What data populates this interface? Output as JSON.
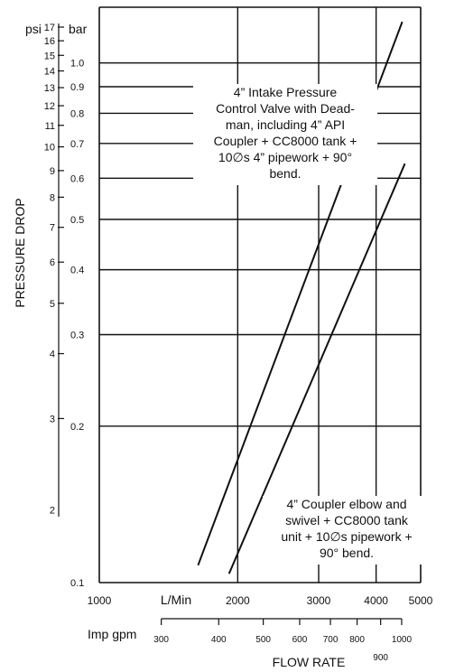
{
  "chart_data": {
    "type": "line",
    "xscale": "log",
    "yscale": "log",
    "xlabel": "FLOW RATE",
    "ylabel": "PRESSURE DROP",
    "x_unit": "L/Min",
    "x_unit_secondary": "Imp gpm",
    "y_unit_left": "psi",
    "y_unit_right": "bar",
    "xlim": [
      1000,
      5000
    ],
    "ylim": [
      0.1,
      1.28
    ],
    "grid": true,
    "x_ticks": [
      "1000",
      "2000",
      "3000",
      "4000",
      "5000"
    ],
    "x_tick_values": [
      1000,
      2000,
      3000,
      4000,
      5000
    ],
    "gpm_ticks": [
      "300",
      "400",
      "500",
      "600",
      "700",
      "800",
      "900",
      "1000"
    ],
    "gpm_tick_values": [
      300,
      400,
      500,
      600,
      700,
      800,
      900,
      1000
    ],
    "bar_ticks": [
      "1.0",
      "0.9",
      "0.8",
      "0.7",
      "0.6",
      "0.5",
      "0.4",
      "0.3",
      "0.2",
      "0.1"
    ],
    "bar_tick_values": [
      1.0,
      0.9,
      0.8,
      0.7,
      0.6,
      0.5,
      0.4,
      0.3,
      0.2,
      0.1
    ],
    "psi_ticks": [
      "17",
      "16",
      "15",
      "14",
      "13",
      "12",
      "11",
      "10",
      "9",
      "8",
      "7",
      "6",
      "5",
      "4",
      "3",
      "2"
    ],
    "psi_tick_values": [
      17,
      16,
      15,
      14,
      13,
      12,
      11,
      10,
      9,
      8,
      7,
      6,
      5,
      4,
      3,
      2
    ],
    "series": [
      {
        "x": [
          1640,
          4560
        ],
        "y": [
          0.108,
          1.2
        ],
        "annotation": [
          "4” Intake Pressure",
          "Control Valve with Dead-",
          "man, including 4” API",
          "Coupler + CC8000 tank +",
          "10∅s 4” pipework + 90°",
          "bend."
        ]
      },
      {
        "x": [
          1915,
          4620
        ],
        "y": [
          0.104,
          0.64
        ],
        "annotation": [
          "4” Coupler  elbow and",
          "swivel + CC8000 tank",
          "unit + 10∅s pipework +",
          "90°  bend."
        ]
      }
    ]
  }
}
